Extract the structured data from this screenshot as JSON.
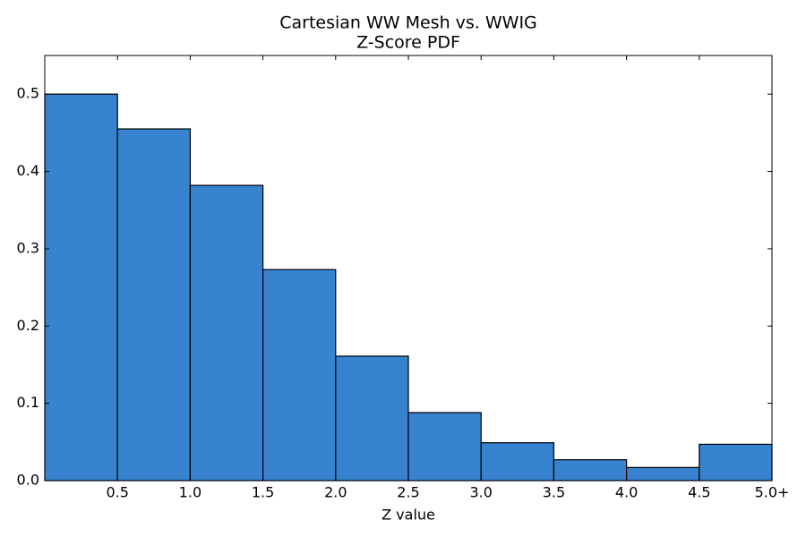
{
  "chart_data": {
    "type": "histogram",
    "title": "Cartesian WW Mesh vs. WWIG",
    "subtitle": "Z-Score PDF",
    "x_label": "Z value",
    "bins": [
      0,
      0.5,
      1,
      1.5,
      2,
      2.5,
      3,
      3.5,
      4,
      4.5,
      5
    ],
    "values": [
      0.5,
      0.455,
      0.382,
      0.273,
      0.161,
      0.088,
      0.049,
      0.027,
      0.017,
      0.047
    ],
    "color": "#3783d0",
    "xlim": [
      0,
      5
    ],
    "xticks": [
      0.5,
      {
        "value": 1,
        "label": "1.0"
      },
      1.5,
      {
        "value": 2,
        "label": "2.0"
      },
      2.5,
      {
        "value": 3,
        "label": "3.0"
      },
      3.5,
      {
        "value": 4,
        "label": "4.0"
      },
      4.5,
      {
        "value": 5,
        "label": "5.0+"
      }
    ],
    "ylim": [
      0,
      0.55
    ],
    "yticks": [
      {
        "value": 0,
        "label": "0.0"
      },
      0.1,
      0.2,
      0.3,
      0.4,
      0.5
    ]
  }
}
